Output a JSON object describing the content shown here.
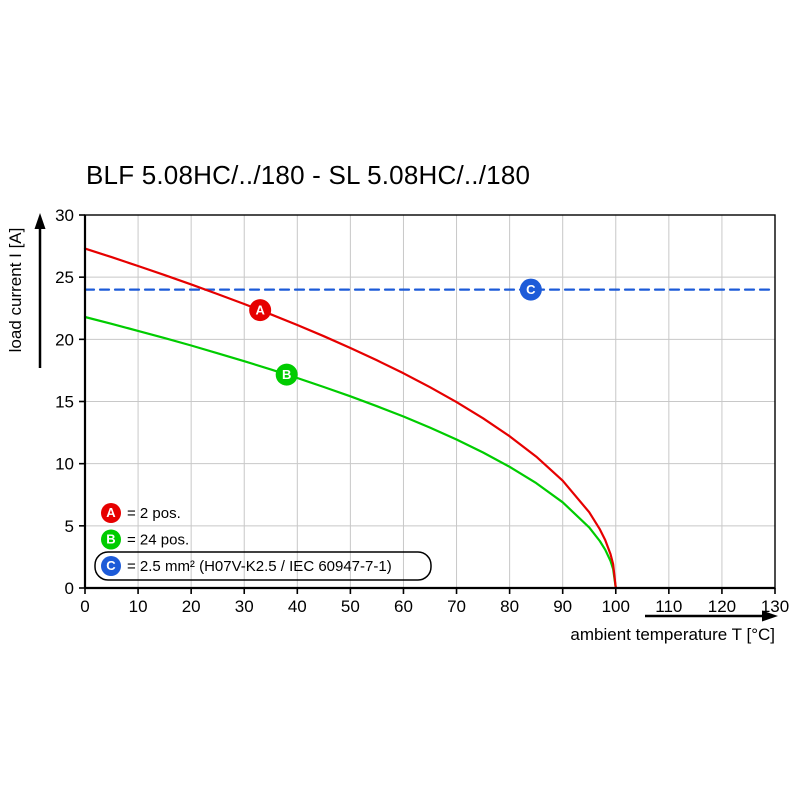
{
  "chart_data": {
    "type": "line",
    "title": "BLF 5.08HC/../180 - SL 5.08HC/../180",
    "xlabel": "ambient temperature T [°C]",
    "ylabel": "load current I [A]",
    "xlim": [
      0,
      130
    ],
    "ylim": [
      0,
      30
    ],
    "xtick_step": 10,
    "ytick_step": 5,
    "grid": true,
    "grid_color": "#c8c8c8",
    "axis_color": "#000000",
    "series": [
      {
        "id": "A",
        "color": "#e60000",
        "style": "solid",
        "points": [
          [
            0,
            27.3
          ],
          [
            5,
            26.61
          ],
          [
            10,
            25.9
          ],
          [
            15,
            25.17
          ],
          [
            20,
            24.42
          ],
          [
            25,
            23.64
          ],
          [
            30,
            22.84
          ],
          [
            35,
            22.01
          ],
          [
            40,
            21.15
          ],
          [
            45,
            20.25
          ],
          [
            50,
            19.3
          ],
          [
            55,
            18.31
          ],
          [
            60,
            17.27
          ],
          [
            65,
            16.15
          ],
          [
            70,
            14.95
          ],
          [
            75,
            13.65
          ],
          [
            80,
            12.21
          ],
          [
            85,
            10.57
          ],
          [
            90,
            8.63
          ],
          [
            95,
            6.1
          ],
          [
            97,
            4.73
          ],
          [
            98,
            3.86
          ],
          [
            99,
            2.73
          ],
          [
            99.5,
            1.93
          ],
          [
            100,
            0
          ]
        ]
      },
      {
        "id": "B",
        "color": "#00cc00",
        "style": "solid",
        "points": [
          [
            0,
            21.8
          ],
          [
            5,
            21.25
          ],
          [
            10,
            20.68
          ],
          [
            15,
            20.1
          ],
          [
            20,
            19.5
          ],
          [
            25,
            18.88
          ],
          [
            30,
            18.24
          ],
          [
            35,
            17.58
          ],
          [
            40,
            16.89
          ],
          [
            45,
            16.17
          ],
          [
            50,
            15.42
          ],
          [
            55,
            14.62
          ],
          [
            60,
            13.79
          ],
          [
            65,
            12.9
          ],
          [
            70,
            11.94
          ],
          [
            75,
            10.9
          ],
          [
            80,
            9.75
          ],
          [
            85,
            8.44
          ],
          [
            90,
            6.89
          ],
          [
            95,
            4.87
          ],
          [
            97,
            3.78
          ],
          [
            98,
            3.08
          ],
          [
            99,
            2.18
          ],
          [
            99.5,
            1.54
          ],
          [
            100,
            0
          ]
        ]
      },
      {
        "id": "C",
        "color": "#1d5bd8",
        "style": "dashed",
        "points": [
          [
            0,
            24
          ],
          [
            130,
            24
          ]
        ]
      }
    ],
    "markers": [
      {
        "letter": "A",
        "color": "#e60000",
        "t": 33,
        "i": 22.35
      },
      {
        "letter": "B",
        "color": "#00cc00",
        "t": 38,
        "i": 17.16
      },
      {
        "letter": "C",
        "color": "#1d5bd8",
        "t": 84,
        "i": 24
      }
    ],
    "legend": {
      "position": "bottom-left",
      "items": [
        {
          "letter": "A",
          "color": "#e60000",
          "label": "= 2 pos.",
          "boxed": false
        },
        {
          "letter": "B",
          "color": "#00cc00",
          "label": "= 24 pos.",
          "boxed": false
        },
        {
          "letter": "C",
          "color": "#1d5bd8",
          "label": "= 2.5 mm² (H07V-K2.5 / IEC 60947-7-1)",
          "boxed": true
        }
      ]
    }
  }
}
